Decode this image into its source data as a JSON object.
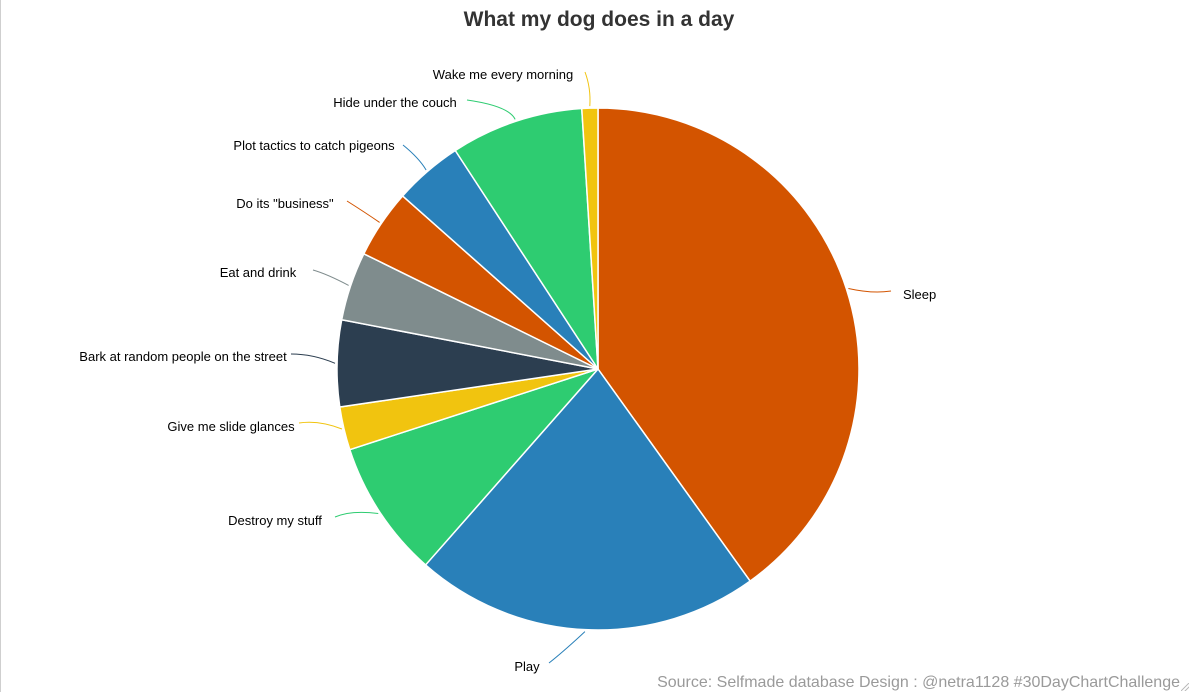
{
  "chart_data": {
    "type": "pie",
    "title": "What my dog does in a day",
    "slices": [
      {
        "label": "Sleep",
        "value": 40.5,
        "color": "#d35400"
      },
      {
        "label": "Play",
        "value": 21.6,
        "color": "#2980b9"
      },
      {
        "label": "Destroy my stuff",
        "value": 8.6,
        "color": "#2ecc71"
      },
      {
        "label": "Give me slide glances",
        "value": 2.7,
        "color": "#f1c40f"
      },
      {
        "label": "Bark at random people on the street",
        "value": 5.4,
        "color": "#2c3e50"
      },
      {
        "label": "Eat and drink",
        "value": 4.3,
        "color": "#7f8c8d"
      },
      {
        "label": "Do its \"business\"",
        "value": 4.3,
        "color": "#d35400"
      },
      {
        "label": "Plot tactics to catch pigeons",
        "value": 4.3,
        "color": "#2980b9"
      },
      {
        "label": "Hide under the couch",
        "value": 8.3,
        "color": "#2ecc71"
      },
      {
        "label": "Wake me every morning",
        "value": 1.0,
        "color": "#f1c40f"
      }
    ],
    "start_angle": "12 o'clock",
    "direction": "clockwise",
    "legend": "none"
  },
  "footer": {
    "source": "Source: Selfmade database Design : @netra1128 #30DayChartChallenge"
  }
}
